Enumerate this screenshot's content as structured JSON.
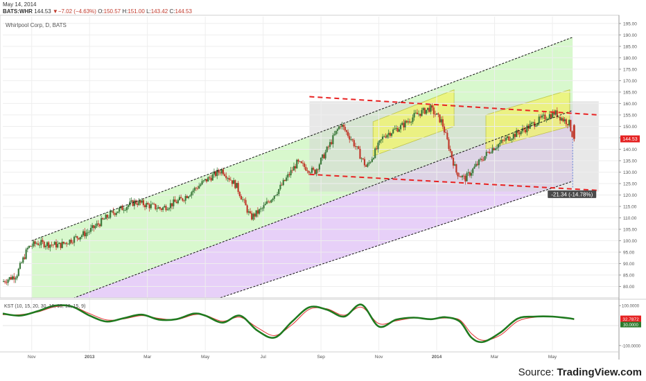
{
  "header": {
    "date": "May 14, 2014",
    "symbol": "BATS:WHR",
    "price": "144.53",
    "change": "−7.02 (−4.63%)",
    "open_label": "O:",
    "open": "150.57",
    "high_label": "H:",
    "high": "151.00",
    "low_label": "L:",
    "low": "143.42",
    "close_label": "C:",
    "close": "144.53"
  },
  "chart_title": "Whirlpool Corp, D, BATS",
  "source": {
    "prefix": "Source: ",
    "brand": "TradingView.com"
  },
  "colors": {
    "up_candle": "#3d7a3d",
    "down_candle": "#c0392b",
    "channel_fill": "#d4f7c8",
    "lower_fill": "#e3c8f7",
    "range_fill": "#d5d5d5",
    "band_fill": "#f2f56a",
    "trend_dash": "#e82222",
    "channel_dash": "#111111",
    "osc_main": "#1f7a1f",
    "osc_signal": "#e03030",
    "last_price_bg": "#e52222"
  },
  "chart_data": {
    "type": "candlestick",
    "price_axis": {
      "ylim": [
        75,
        198
      ],
      "ticks": [
        80,
        85,
        90,
        95,
        100,
        105,
        110,
        115,
        120,
        125,
        130,
        135,
        140,
        145,
        150,
        155,
        160,
        165,
        170,
        175,
        180,
        185,
        190,
        195
      ],
      "tick_labels": [
        "80.00",
        "85.00",
        "90.00",
        "95.00",
        "100.00",
        "105.00",
        "110.00",
        "115.00",
        "120.00",
        "125.00",
        "130.00",
        "135.00",
        "140.00",
        "145.00",
        "150.00",
        "155.00",
        "160.00",
        "165.00",
        "170.00",
        "175.00",
        "180.00",
        "185.00",
        "190.00",
        "195.00"
      ]
    },
    "time_axis": {
      "labels": [
        "Nov",
        "2013",
        "Mar",
        "May",
        "Jul",
        "Sep",
        "Nov",
        "2014",
        "Mar",
        "May"
      ],
      "positions_month_index": [
        1,
        3,
        5,
        7,
        9,
        11,
        13,
        15,
        17,
        19
      ]
    },
    "price_path": [
      [
        0,
        82
      ],
      [
        0.5,
        85
      ],
      [
        0.9,
        97
      ],
      [
        1.2,
        99
      ],
      [
        2,
        98
      ],
      [
        3,
        104
      ],
      [
        3.8,
        112
      ],
      [
        4.6,
        117
      ],
      [
        5.5,
        114
      ],
      [
        6.2,
        118
      ],
      [
        7,
        126
      ],
      [
        7.6,
        131
      ],
      [
        8.1,
        124
      ],
      [
        8.6,
        110
      ],
      [
        9,
        114
      ],
      [
        9.6,
        123
      ],
      [
        10.2,
        134
      ],
      [
        10.8,
        130
      ],
      [
        11.2,
        139
      ],
      [
        11.7,
        151
      ],
      [
        12.1,
        144
      ],
      [
        12.6,
        132
      ],
      [
        13.2,
        146
      ],
      [
        13.8,
        150
      ],
      [
        14.3,
        155
      ],
      [
        14.8,
        158
      ],
      [
        15.2,
        152
      ],
      [
        15.7,
        130
      ],
      [
        16.0,
        127
      ],
      [
        16.4,
        133
      ],
      [
        16.9,
        140
      ],
      [
        17.5,
        145
      ],
      [
        18.1,
        149
      ],
      [
        18.6,
        153
      ],
      [
        19.1,
        156
      ],
      [
        19.4,
        153
      ],
      [
        19.6,
        151.5
      ],
      [
        19.75,
        144.53
      ]
    ],
    "last_price": {
      "value": 144.53,
      "label": "144.53"
    },
    "channel": {
      "upper": [
        [
          1,
          100
        ],
        [
          19.7,
          189
        ]
      ],
      "middle": [
        [
          1.2,
          69
        ],
        [
          19.7,
          157
        ]
      ],
      "lower": [
        [
          3.2,
          57
        ],
        [
          19.7,
          126
        ]
      ]
    },
    "range_box": {
      "x": [
        10.6,
        20.6
      ],
      "y": [
        121.5,
        161
      ]
    },
    "downtrend": {
      "upper": [
        [
          10.6,
          163
        ],
        [
          20.6,
          155
        ]
      ],
      "lower": [
        [
          10.6,
          129
        ],
        [
          20.6,
          122
        ]
      ]
    },
    "highlight_bands": [
      {
        "x": [
          12.8,
          15.6
        ],
        "y_left": [
          137,
          152
        ],
        "y_right": [
          150,
          166
        ]
      },
      {
        "x": [
          16.7,
          19.6
        ],
        "y_left": [
          140,
          155
        ],
        "y_right": [
          150,
          166
        ]
      }
    ],
    "measure": {
      "from": [
        19.7,
        144.53
      ],
      "to": [
        19.7,
        123.2
      ],
      "label": "-21.34 (-14.78%)"
    },
    "oscillator": {
      "label": "KST (10, 15, 20, 30, 10, 10, 10, 15, 9)",
      "ylim": [
        -125,
        125
      ],
      "ticks": [
        100,
        -100
      ],
      "tick_labels": [
        "100.0000",
        "-100.0000"
      ],
      "last": 32.7872,
      "last_label": "32.7872",
      "signal_label": "30.0000",
      "main": [
        [
          0,
          60
        ],
        [
          0.6,
          50
        ],
        [
          1.2,
          72
        ],
        [
          1.8,
          100
        ],
        [
          2.4,
          95
        ],
        [
          3.0,
          50
        ],
        [
          3.6,
          20
        ],
        [
          4.2,
          38
        ],
        [
          4.8,
          55
        ],
        [
          5.4,
          30
        ],
        [
          6.0,
          32
        ],
        [
          6.6,
          60
        ],
        [
          7.0,
          50
        ],
        [
          7.6,
          15
        ],
        [
          8.2,
          50
        ],
        [
          8.8,
          -25
        ],
        [
          9.4,
          -60
        ],
        [
          10.0,
          20
        ],
        [
          10.6,
          92
        ],
        [
          11.2,
          80
        ],
        [
          11.8,
          45
        ],
        [
          12.4,
          105
        ],
        [
          13.0,
          -5
        ],
        [
          13.6,
          30
        ],
        [
          14.2,
          40
        ],
        [
          14.8,
          32
        ],
        [
          15.3,
          42
        ],
        [
          15.8,
          20
        ],
        [
          16.2,
          -60
        ],
        [
          16.6,
          -82
        ],
        [
          17.2,
          -35
        ],
        [
          17.8,
          35
        ],
        [
          18.4,
          45
        ],
        [
          19.0,
          45
        ],
        [
          19.5,
          38
        ],
        [
          19.75,
          32.8
        ]
      ],
      "signal": [
        [
          0,
          55
        ],
        [
          0.6,
          55
        ],
        [
          1.2,
          68
        ],
        [
          1.8,
          94
        ],
        [
          2.4,
          96
        ],
        [
          3.0,
          60
        ],
        [
          3.6,
          28
        ],
        [
          4.2,
          34
        ],
        [
          4.8,
          50
        ],
        [
          5.4,
          36
        ],
        [
          6.0,
          30
        ],
        [
          6.6,
          54
        ],
        [
          7.0,
          52
        ],
        [
          7.6,
          22
        ],
        [
          8.2,
          42
        ],
        [
          8.8,
          -10
        ],
        [
          9.4,
          -50
        ],
        [
          10.0,
          5
        ],
        [
          10.6,
          82
        ],
        [
          11.2,
          84
        ],
        [
          11.8,
          52
        ],
        [
          12.4,
          92
        ],
        [
          13.0,
          10
        ],
        [
          13.6,
          24
        ],
        [
          14.2,
          38
        ],
        [
          14.8,
          34
        ],
        [
          15.3,
          38
        ],
        [
          15.8,
          28
        ],
        [
          16.2,
          -40
        ],
        [
          16.6,
          -74
        ],
        [
          17.2,
          -48
        ],
        [
          17.8,
          22
        ],
        [
          18.4,
          42
        ],
        [
          19.0,
          44
        ],
        [
          19.5,
          40
        ],
        [
          19.75,
          30
        ]
      ]
    }
  }
}
